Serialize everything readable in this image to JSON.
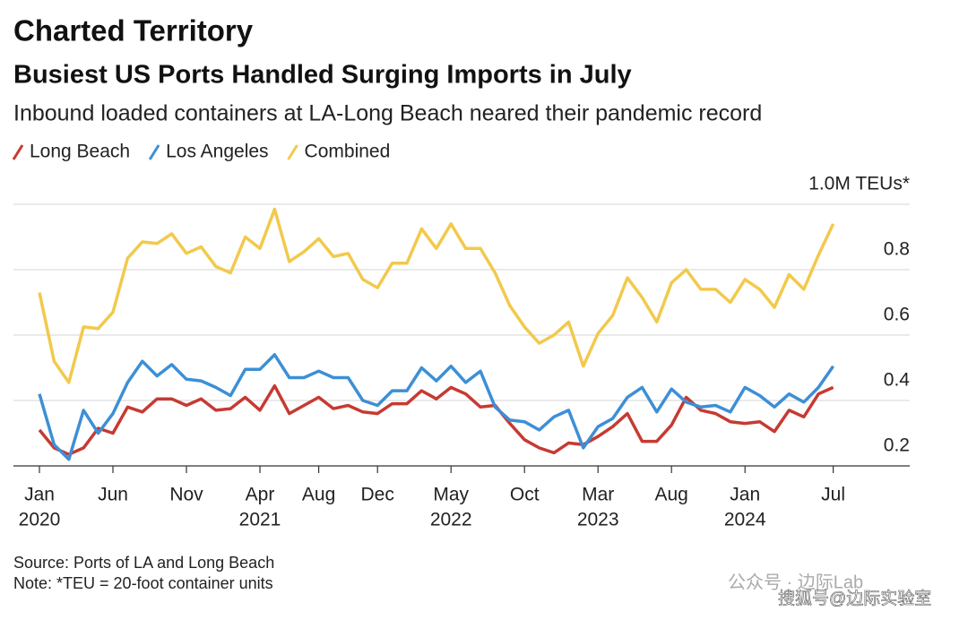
{
  "chart_data": {
    "type": "line",
    "kicker": "Charted Territory",
    "title": "Busiest US Ports Handled Surging Imports in July",
    "subtitle": "Inbound loaded containers at LA-Long Beach neared their pandemic record",
    "source": "Source: Ports of LA and Long Beach",
    "note": "Note: *TEU = 20-foot container units",
    "watermark": [
      "公众号 · 边际Lab",
      "搜狐号@边际实验室"
    ],
    "x": [
      "2020-01",
      "2020-02",
      "2020-03",
      "2020-04",
      "2020-05",
      "2020-06",
      "2020-07",
      "2020-08",
      "2020-09",
      "2020-10",
      "2020-11",
      "2020-12",
      "2021-01",
      "2021-02",
      "2021-03",
      "2021-04",
      "2021-05",
      "2021-06",
      "2021-07",
      "2021-08",
      "2021-09",
      "2021-10",
      "2021-11",
      "2021-12",
      "2022-01",
      "2022-02",
      "2022-03",
      "2022-04",
      "2022-05",
      "2022-06",
      "2022-07",
      "2022-08",
      "2022-09",
      "2022-10",
      "2022-11",
      "2022-12",
      "2023-01",
      "2023-02",
      "2023-03",
      "2023-04",
      "2023-05",
      "2023-06",
      "2023-07",
      "2023-08",
      "2023-09",
      "2023-10",
      "2023-11",
      "2023-12",
      "2024-01",
      "2024-02",
      "2024-03",
      "2024-04",
      "2024-05",
      "2024-06",
      "2024-07"
    ],
    "xticks": [
      {
        "value": "2020-01",
        "label": "Jan",
        "year": "2020"
      },
      {
        "value": "2020-06",
        "label": "Jun"
      },
      {
        "value": "2020-11",
        "label": "Nov"
      },
      {
        "value": "2021-04",
        "label": "Apr",
        "year": "2021"
      },
      {
        "value": "2021-08",
        "label": "Aug"
      },
      {
        "value": "2021-12",
        "label": "Dec"
      },
      {
        "value": "2022-05",
        "label": "May",
        "year": "2022"
      },
      {
        "value": "2022-10",
        "label": "Oct"
      },
      {
        "value": "2023-03",
        "label": "Mar",
        "year": "2023"
      },
      {
        "value": "2023-08",
        "label": "Aug"
      },
      {
        "value": "2024-01",
        "label": "Jan",
        "year": "2024"
      },
      {
        "value": "2024-07",
        "label": "Jul"
      }
    ],
    "ylim": [
      0.2,
      1.0
    ],
    "yticks": [
      0.2,
      0.4,
      0.6,
      0.8,
      {
        "value": 1.0,
        "label": "1.0M TEUs*"
      }
    ],
    "grid": true,
    "series": [
      {
        "name": "Long Beach",
        "color": "#c63a32",
        "values": [
          0.31,
          0.255,
          0.235,
          0.255,
          0.315,
          0.3,
          0.38,
          0.365,
          0.405,
          0.405,
          0.385,
          0.405,
          0.37,
          0.375,
          0.41,
          0.37,
          0.445,
          0.36,
          0.385,
          0.41,
          0.375,
          0.385,
          0.365,
          0.36,
          0.39,
          0.39,
          0.43,
          0.405,
          0.44,
          0.42,
          0.38,
          0.385,
          0.33,
          0.28,
          0.255,
          0.24,
          0.27,
          0.265,
          0.29,
          0.32,
          0.36,
          0.275,
          0.275,
          0.325,
          0.41,
          0.37,
          0.36,
          0.335,
          0.33,
          0.335,
          0.305,
          0.37,
          0.35,
          0.42,
          0.44
        ]
      },
      {
        "name": "Los Angeles",
        "color": "#3d8fd6",
        "values": [
          0.42,
          0.265,
          0.22,
          0.37,
          0.3,
          0.36,
          0.455,
          0.52,
          0.475,
          0.51,
          0.465,
          0.46,
          0.44,
          0.415,
          0.495,
          0.495,
          0.54,
          0.47,
          0.47,
          0.49,
          0.47,
          0.47,
          0.4,
          0.385,
          0.43,
          0.43,
          0.5,
          0.46,
          0.505,
          0.455,
          0.49,
          0.38,
          0.34,
          0.335,
          0.31,
          0.35,
          0.37,
          0.255,
          0.32,
          0.345,
          0.41,
          0.44,
          0.365,
          0.435,
          0.395,
          0.38,
          0.385,
          0.365,
          0.44,
          0.415,
          0.38,
          0.42,
          0.395,
          0.44,
          0.505
        ]
      },
      {
        "name": "Combined",
        "color": "#f2c94c",
        "values": [
          0.73,
          0.52,
          0.455,
          0.625,
          0.62,
          0.67,
          0.835,
          0.885,
          0.88,
          0.91,
          0.85,
          0.87,
          0.81,
          0.79,
          0.9,
          0.865,
          0.985,
          0.825,
          0.855,
          0.895,
          0.84,
          0.85,
          0.77,
          0.745,
          0.82,
          0.82,
          0.925,
          0.865,
          0.94,
          0.865,
          0.865,
          0.79,
          0.69,
          0.625,
          0.575,
          0.6,
          0.64,
          0.505,
          0.605,
          0.66,
          0.775,
          0.715,
          0.64,
          0.76,
          0.8,
          0.74,
          0.74,
          0.7,
          0.77,
          0.74,
          0.685,
          0.785,
          0.74,
          0.845,
          0.94
        ]
      }
    ]
  }
}
